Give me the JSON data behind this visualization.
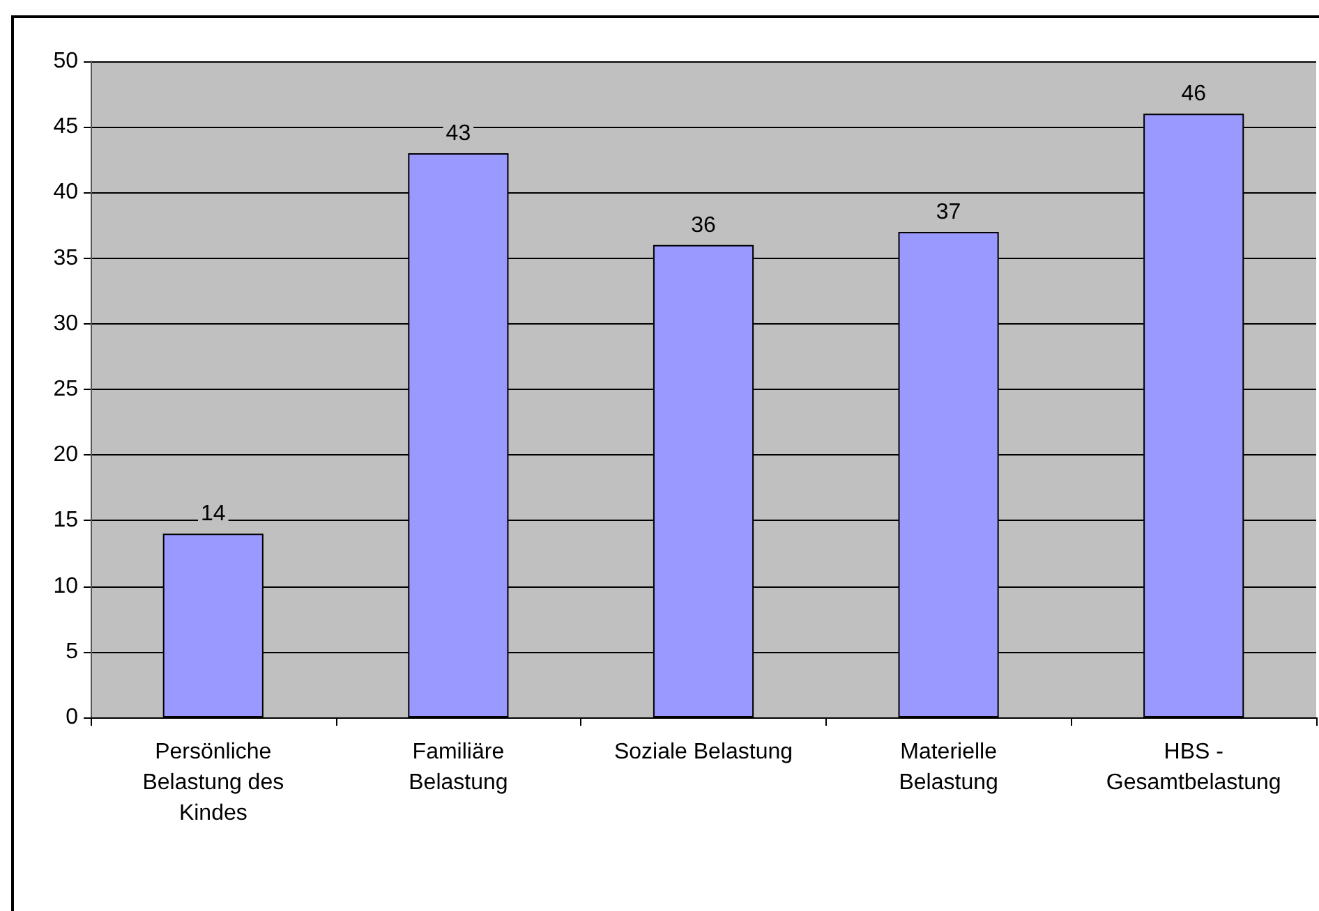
{
  "chart_data": {
    "type": "bar",
    "categories": [
      "Persönliche\nBelastung des\nKindes",
      "Familiäre\nBelastung",
      "Soziale Belastung",
      "Materielle\nBelastung",
      "HBS -\nGesamtbelastung"
    ],
    "values": [
      14,
      43,
      36,
      37,
      46
    ],
    "color": "#9999ff",
    "ylim": [
      0,
      50
    ],
    "yticks": [
      0,
      5,
      10,
      15,
      20,
      25,
      30,
      35,
      40,
      45,
      50
    ],
    "grid": "y",
    "data_labels": true
  }
}
